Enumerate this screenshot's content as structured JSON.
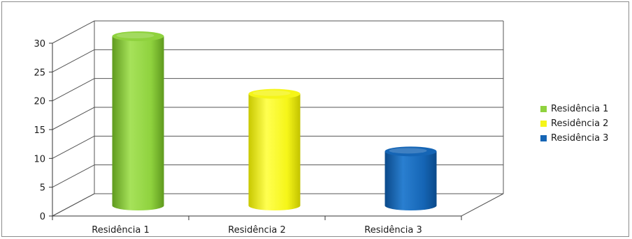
{
  "chart_data": {
    "type": "bar",
    "categories": [
      "Residência 1",
      "Residência 2",
      "Residência 3"
    ],
    "values": [
      30,
      20,
      10
    ],
    "ylim": [
      0,
      30
    ],
    "yticks": [
      0,
      5,
      10,
      15,
      20,
      25,
      30
    ],
    "colors": [
      "#8fd23e",
      "#f5f518",
      "#1565b5"
    ],
    "grid": true,
    "legend": {
      "placement": "right",
      "entries": [
        "Residência 1",
        "Residência 2",
        "Residência 3"
      ]
    },
    "style": "3d-cylinder"
  }
}
